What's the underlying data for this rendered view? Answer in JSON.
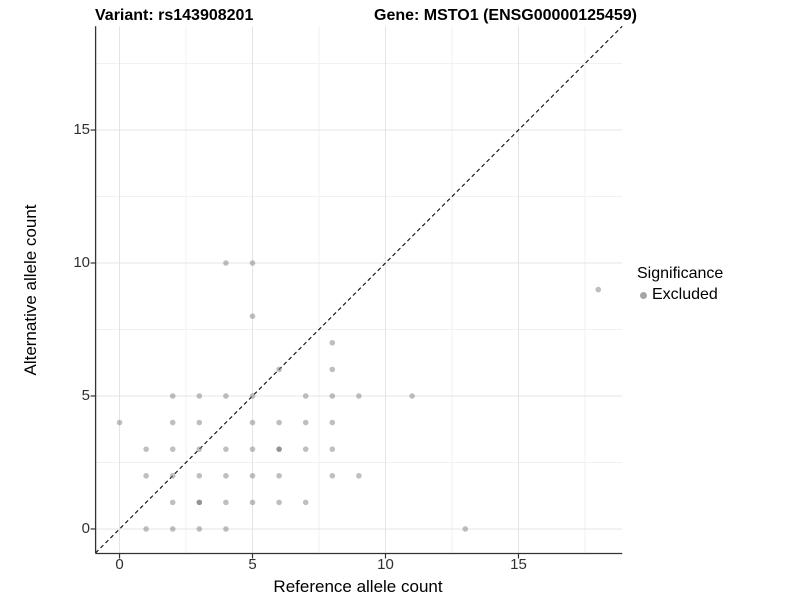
{
  "titles": {
    "variant": "Variant: rs143908201",
    "gene": "Gene: MSTO1 (ENSG00000125459)"
  },
  "axes": {
    "x_label": "Reference allele count",
    "y_label": "Alternative allele count",
    "x_ticks": [
      "0",
      "5",
      "10",
      "15"
    ],
    "y_ticks": [
      "0",
      "5",
      "10",
      "15"
    ]
  },
  "legend": {
    "title": "Significance",
    "items": [
      {
        "label": "Excluded",
        "color": "#a6a6a6"
      }
    ],
    "position": "right"
  },
  "colors": {
    "background": "#ffffff",
    "point": "#808080",
    "grid_major": "#e4e4e4",
    "grid_minor": "#f1f1f1",
    "axis_line": "#333333",
    "identity_line": "#1a1a1a"
  },
  "chart_data": {
    "type": "scatter",
    "title": "Variant: rs143908201 / Gene: MSTO1 (ENSG00000125459)",
    "xlabel": "Reference allele count",
    "ylabel": "Alternative allele count",
    "xlim": [
      -0.9,
      18.9
    ],
    "ylim": [
      -0.9,
      18.9
    ],
    "x_major_ticks": [
      0,
      5,
      10,
      15
    ],
    "y_major_ticks": [
      0,
      5,
      10,
      15
    ],
    "grid": {
      "major": [
        0,
        5,
        10,
        15
      ],
      "minor": [
        2.5,
        7.5,
        12.5,
        17.5
      ]
    },
    "reference_line": {
      "type": "identity y=x",
      "style": "dashed"
    },
    "legend_position": "right",
    "series": [
      {
        "name": "Excluded",
        "points": [
          [
            1,
            0
          ],
          [
            2,
            0
          ],
          [
            3,
            0
          ],
          [
            4,
            0
          ],
          [
            13,
            0
          ],
          [
            2,
            1
          ],
          [
            3,
            1
          ],
          [
            4,
            1
          ],
          [
            5,
            1
          ],
          [
            6,
            1
          ],
          [
            7,
            1
          ],
          [
            1,
            2
          ],
          [
            2,
            2
          ],
          [
            3,
            2
          ],
          [
            4,
            2
          ],
          [
            5,
            2
          ],
          [
            6,
            2
          ],
          [
            8,
            2
          ],
          [
            9,
            2
          ],
          [
            1,
            3
          ],
          [
            2,
            3
          ],
          [
            3,
            3
          ],
          [
            4,
            3
          ],
          [
            5,
            3
          ],
          [
            6,
            3
          ],
          [
            7,
            3
          ],
          [
            8,
            3
          ],
          [
            0,
            4
          ],
          [
            2,
            4
          ],
          [
            3,
            4
          ],
          [
            5,
            4
          ],
          [
            6,
            4
          ],
          [
            7,
            4
          ],
          [
            8,
            4
          ],
          [
            2,
            5
          ],
          [
            3,
            5
          ],
          [
            4,
            5
          ],
          [
            5,
            5
          ],
          [
            7,
            5
          ],
          [
            8,
            5
          ],
          [
            9,
            5
          ],
          [
            11,
            5
          ],
          [
            6,
            6
          ],
          [
            8,
            6
          ],
          [
            8,
            7
          ],
          [
            5,
            8
          ],
          [
            18,
            9
          ],
          [
            4,
            10
          ],
          [
            5,
            10
          ]
        ],
        "darker_overplotted_points": [
          [
            3,
            1
          ],
          [
            6,
            3
          ]
        ]
      }
    ]
  }
}
